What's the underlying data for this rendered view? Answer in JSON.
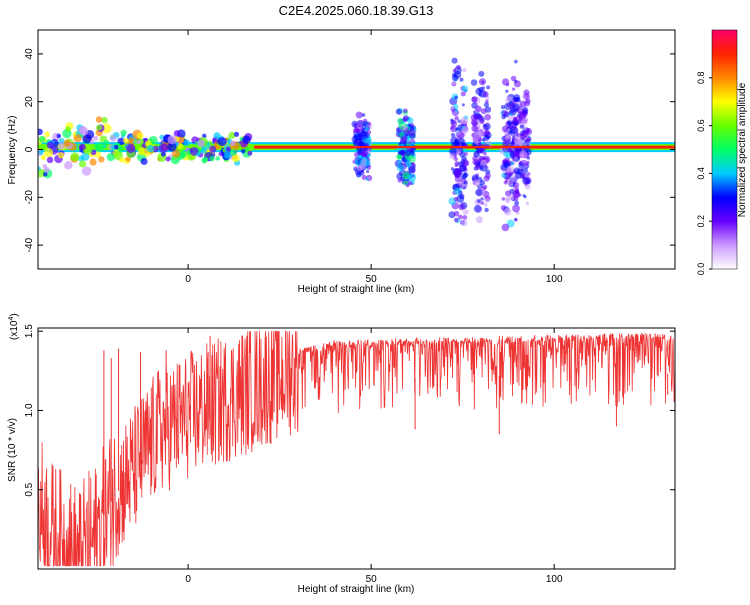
{
  "title": "C2E4.2025.060.18.39.G13",
  "chart_data": [
    {
      "type": "heatmap",
      "xlabel": "Height of straight line (km)",
      "ylabel": "Frequency (Hz)",
      "xlim": [
        -41,
        133
      ],
      "ylim": [
        -50,
        50
      ],
      "x_ticks": [
        {
          "v": 0,
          "label": "0"
        },
        {
          "v": 50,
          "label": "50"
        },
        {
          "v": 100,
          "label": "100"
        }
      ],
      "y_ticks": [
        {
          "v": -40,
          "label": "-40"
        },
        {
          "v": -20,
          "label": "-20"
        },
        {
          "v": 0,
          "label": "0"
        },
        {
          "v": 20,
          "label": "20"
        },
        {
          "v": 40,
          "label": "40"
        }
      ],
      "colorbar": {
        "label": "Normalized spectral amplitude",
        "range": [
          0,
          1
        ],
        "ticks": [
          {
            "v": 0.0,
            "label": "0.0"
          },
          {
            "v": 0.2,
            "label": "0.2"
          },
          {
            "v": 0.4,
            "label": "0.4"
          },
          {
            "v": 0.6,
            "label": "0.6"
          },
          {
            "v": 0.8,
            "label": "0.8"
          }
        ],
        "colors": [
          "#ffffff",
          "#cc99ff",
          "#6600ff",
          "#0000ff",
          "#00ccff",
          "#00ff66",
          "#66ff00",
          "#ffff00",
          "#ff8800",
          "#ff2200",
          "#ff0066"
        ]
      },
      "line_band": {
        "x_from": -41,
        "x_to": 133,
        "freq": 1
      },
      "clusters": [
        {
          "x": 47.5,
          "half_range": 15,
          "amp": 0.4
        },
        {
          "x": 59.5,
          "half_range": 17,
          "amp": 0.45
        },
        {
          "x": 74,
          "half_range": 40,
          "amp": 0.35
        },
        {
          "x": 80,
          "half_range": 33,
          "amp": 0.3
        },
        {
          "x": 88,
          "half_range": 37,
          "amp": 0.35
        },
        {
          "x": 91,
          "half_range": 30,
          "amp": 0.3
        }
      ]
    },
    {
      "type": "line",
      "xlabel": "Height of straight line (km)",
      "ylabel": "SNR (10 * v/v)",
      "y_multiplier": "(x10",
      "y_multiplier_exp": "4",
      "y_multiplier_close": ")",
      "xlim": [
        -41,
        133
      ],
      "ylim": [
        0,
        1.52
      ],
      "x_ticks": [
        {
          "v": 0,
          "label": "0"
        },
        {
          "v": 50,
          "label": "50"
        },
        {
          "v": 100,
          "label": "100"
        }
      ],
      "y_ticks": [
        {
          "v": 0.5,
          "label": "0.5"
        },
        {
          "v": 1.0,
          "label": "1.0"
        },
        {
          "v": 1.5,
          "label": "1.5"
        }
      ],
      "series": [
        {
          "color": "#ee3333",
          "envelope": [
            {
              "x": -41,
              "y": 0.5
            },
            {
              "x": -37,
              "y": 0.3
            },
            {
              "x": -30,
              "y": 0.15
            },
            {
              "x": -25,
              "y": 0.3
            },
            {
              "x": -20,
              "y": 0.55
            },
            {
              "x": -15,
              "y": 0.7
            },
            {
              "x": -8,
              "y": 0.95
            },
            {
              "x": 0,
              "y": 1.05
            },
            {
              "x": 10,
              "y": 1.15
            },
            {
              "x": 20,
              "y": 1.25
            },
            {
              "x": 30,
              "y": 1.35
            },
            {
              "x": 40,
              "y": 1.4
            },
            {
              "x": 60,
              "y": 1.42
            },
            {
              "x": 80,
              "y": 1.43
            },
            {
              "x": 100,
              "y": 1.44
            },
            {
              "x": 120,
              "y": 1.45
            },
            {
              "x": 133,
              "y": 1.45
            }
          ],
          "spikes": [
            {
              "x": -23,
              "y": 1.38
            },
            {
              "x": -21,
              "y": 1.33
            },
            {
              "x": -19,
              "y": 1.39
            },
            {
              "x": -13,
              "y": 1.37
            },
            {
              "x": -6,
              "y": 1.38
            },
            {
              "x": 6,
              "y": 1.47
            },
            {
              "x": 62,
              "y": 0.88
            },
            {
              "x": 85,
              "y": 0.85
            },
            {
              "x": 117,
              "y": 0.9
            },
            {
              "x": 131,
              "y": 1.1
            }
          ]
        }
      ]
    }
  ]
}
